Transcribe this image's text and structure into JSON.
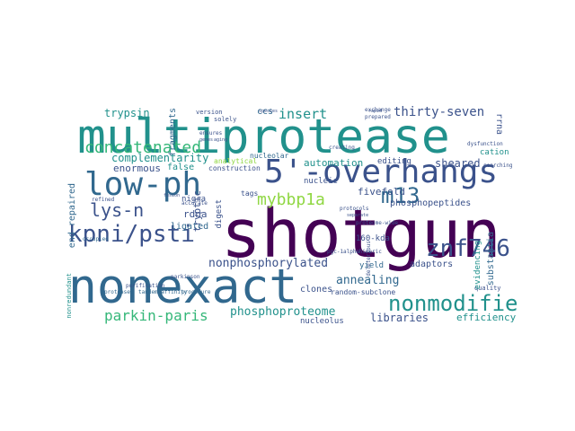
{
  "words": {
    "shotgun": "shotgun",
    "multiprotease": "multiprotease",
    "nonexact": "nonexact",
    "overhangs": "5'-overhangs",
    "low_ph": "low-ph",
    "kpni_psti": "kpni/psti",
    "znf746": "znf746",
    "nonmodified": "nonmodified",
    "m13": "m13",
    "mybbp1a": "mybbp1a",
    "lys_n": "lys-n",
    "concatenated": "concatenated",
    "parkin_paris": "parkin-paris",
    "insert": "insert",
    "thirty_seven": "thirty-seven",
    "nonphosphorylated": "nonphosphorylated",
    "annealing": "annealing",
    "phosphoproteome": "phosphoproteome",
    "trypsin": "trypsin",
    "complementarity": "complementarity",
    "automation": "automation",
    "sheared": "sheared",
    "phosphopeptides": "phosphopeptides",
    "fivefold": "fivefold",
    "enormous": "enormous",
    "libraries": "libraries",
    "efficiency": "efficiency",
    "adaptors": "adaptors",
    "tryptic": "tryptic",
    "rdna": "rdna",
    "ccs": "ccs",
    "fragments": "fragments",
    "end_repaired": "end-repaired",
    "ligated": "ligated",
    "nigra": "nigra",
    "false": "false",
    "nucleic": "nucleic",
    "editing": "editing",
    "construction": "construction",
    "kda160": "160-kda",
    "clones": "clones",
    "random_subclone": "random-subclone",
    "nucleolus": "nucleolus",
    "yield": "yield",
    "substantia": "substantia",
    "evidencing": "evidencing",
    "rrna": "rrna",
    "cation": "cation",
    "proteases": "proteases",
    "tandem_affinity": "tandem-affinity",
    "procedure": "procedure",
    "digest": "digest",
    "nucleolar": "nucleolar",
    "analytical": "analytical",
    "tags": "tags",
    "purification": "purification",
    "occupied": "occupied",
    "quality": "quality",
    "dysfunction": "dysfunction",
    "nonredundant": "nonredundant",
    "solely": "solely",
    "version": "version",
    "species": "species",
    "capid": "rapid",
    "prepared": "prepared",
    "exchange": "exchange",
    "creating": "creating",
    "ensures": "ensures",
    "aging": "aging",
    "genes": "genes",
    "accurate": "accurate",
    "refined": "refined",
    "parkinson": "parkinson",
    "pgc1alpha": "pgc-1alpha",
    "deleterious": "deleterious",
    "chimeric": "chimeric",
    "proteome_wide": "proteome-wide",
    "protocols": "protocols",
    "separate": "separate",
    "searching": "searching",
    "fusion": "fusion"
  },
  "colors": {
    "dark_purple": "#440154",
    "indigo": "#3b528b",
    "blue": "#31688e",
    "teal": "#21918c",
    "green": "#35b779",
    "lime": "#90d743",
    "yellow": "#fde725"
  }
}
